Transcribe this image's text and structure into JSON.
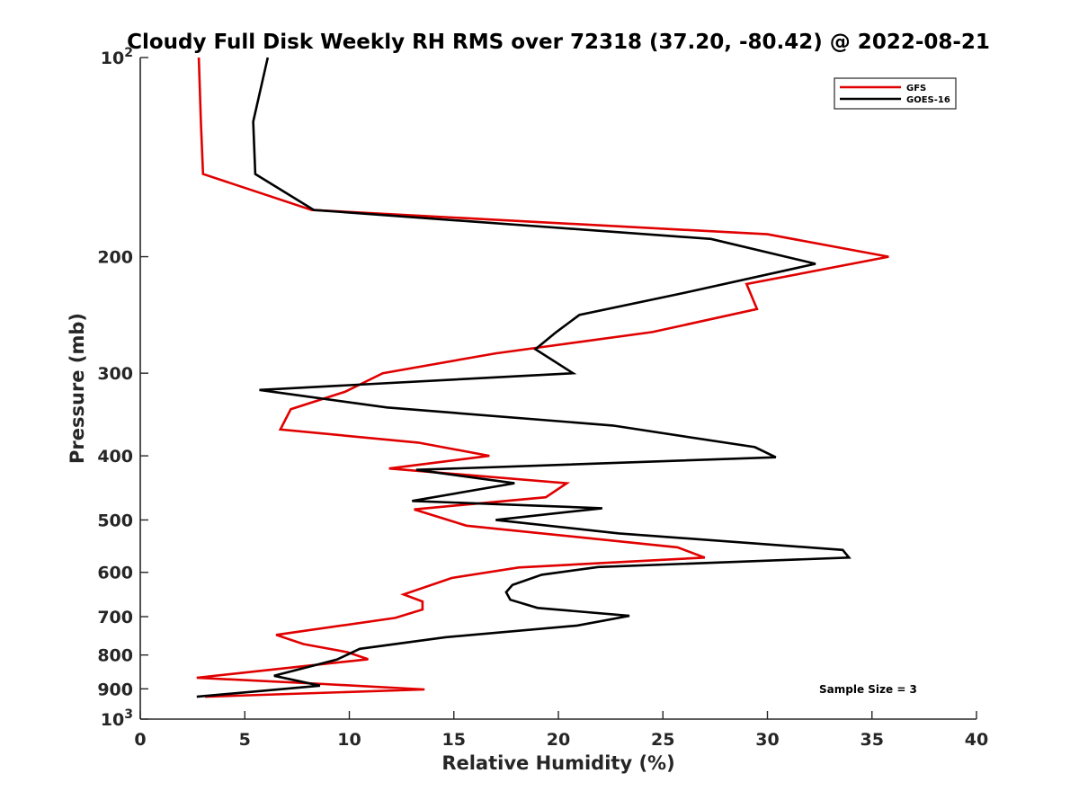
{
  "chart_data": {
    "type": "line",
    "title": "Cloudy Full Disk Weekly RH RMS over 72318 (37.20, -80.42) @ 2022-08-21",
    "xlabel": "Relative Humidity (%)",
    "ylabel": "Pressure (mb)",
    "xlim": [
      0,
      40
    ],
    "ylim": [
      100,
      1000
    ],
    "yscale": "log",
    "y_reversed": true,
    "x_ticks": [
      0,
      5,
      10,
      15,
      20,
      25,
      30,
      35,
      40
    ],
    "x_tick_labels": [
      "0",
      "5",
      "10",
      "15",
      "20",
      "25",
      "30",
      "35",
      "40"
    ],
    "y_ticks": [
      100,
      200,
      300,
      400,
      500,
      600,
      700,
      800,
      900,
      1000
    ],
    "y_tick_labels": [
      {
        "base": "10",
        "exp": "2"
      },
      {
        "base": "200",
        "exp": ""
      },
      {
        "base": "300",
        "exp": ""
      },
      {
        "base": "400",
        "exp": ""
      },
      {
        "base": "500",
        "exp": ""
      },
      {
        "base": "600",
        "exp": ""
      },
      {
        "base": "700",
        "exp": ""
      },
      {
        "base": "800",
        "exp": ""
      },
      {
        "base": "900",
        "exp": ""
      },
      {
        "base": "10",
        "exp": "3"
      }
    ],
    "legend_position": "top-right",
    "annotation": "Sample Size = 3",
    "series": [
      {
        "name": "GFS",
        "color": "#e00000",
        "x": [
          2.8,
          2.9,
          3.0,
          8.2,
          30.0,
          35.8,
          29.0,
          29.5,
          24.5,
          17.0,
          11.6,
          9.8,
          7.2,
          6.7,
          13.3,
          16.7,
          11.9,
          20.4,
          19.4,
          13.1,
          15.6,
          25.7,
          27.0,
          18.1,
          14.9,
          12.6,
          13.5,
          13.5,
          12.2,
          6.5,
          7.8,
          9.9,
          10.9,
          2.7,
          8.8,
          13.6,
          3.1
        ],
        "y": [
          100,
          125,
          150,
          170,
          185,
          200,
          220,
          240,
          260,
          280,
          300,
          320,
          340,
          365,
          382,
          400,
          418,
          440,
          462,
          482,
          510,
          550,
          570,
          590,
          612,
          648,
          664,
          683,
          703,
          746,
          770,
          792,
          812,
          866,
          885,
          902,
          925
        ]
      },
      {
        "name": "GOES-16",
        "color": "#000000",
        "x": [
          6.1,
          5.4,
          5.5,
          8.3,
          27.3,
          32.3,
          25.7,
          21.0,
          19.9,
          18.9,
          20.7,
          5.7,
          11.8,
          22.6,
          29.4,
          30.4,
          13.2,
          17.9,
          13.0,
          22.1,
          17.0,
          22.9,
          33.6,
          33.9,
          21.9,
          19.2,
          17.8,
          17.5,
          17.7,
          19.0,
          23.4,
          20.9,
          14.6,
          10.5,
          9.4,
          6.4,
          8.6,
          2.7
        ],
        "y": [
          100,
          125,
          150,
          170,
          188,
          205,
          228,
          245,
          260,
          276,
          300,
          318,
          338,
          360,
          388,
          402,
          420,
          440,
          468,
          480,
          500,
          524,
          555,
          570,
          589,
          605,
          627,
          643,
          660,
          679,
          698,
          722,
          752,
          783,
          813,
          860,
          890,
          925
        ]
      }
    ]
  }
}
